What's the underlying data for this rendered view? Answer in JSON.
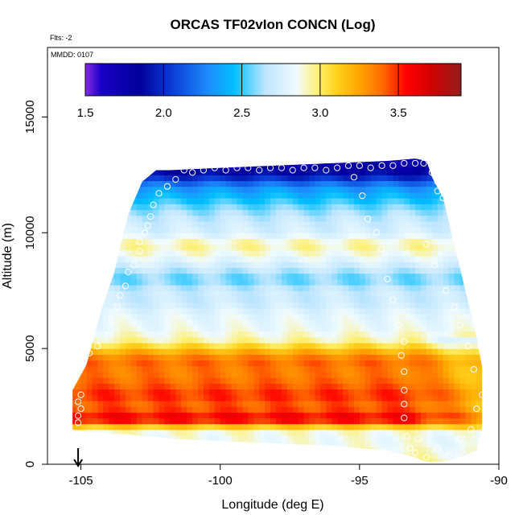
{
  "chart_data": {
    "type": "heatmap",
    "title": "ORCAS TF02vIon CONCN (Log)",
    "flts_label": "Flts: -2",
    "mmdd_label": "MMDD: 0107",
    "xlabel": "Longitude (deg E)",
    "ylabel": "Altitude (m)",
    "xlim": [
      -106.2,
      -90
    ],
    "ylim": [
      0,
      18000
    ],
    "xticks": [
      -105,
      -100,
      -95,
      -90
    ],
    "yticks": [
      0,
      5000,
      10000,
      15000
    ],
    "colorbar": {
      "range": [
        1.5,
        3.9
      ],
      "ticks": [
        1.5,
        2.0,
        2.5,
        3.0,
        3.5
      ],
      "stops": [
        {
          "v": 1.5,
          "c": "#8a2be2"
        },
        {
          "v": 1.6,
          "c": "#1a00c8"
        },
        {
          "v": 1.85,
          "c": "#00009a"
        },
        {
          "v": 2.05,
          "c": "#0a3cd6"
        },
        {
          "v": 2.3,
          "c": "#1e90ff"
        },
        {
          "v": 2.45,
          "c": "#00bfff"
        },
        {
          "v": 2.65,
          "c": "#bfe6ff"
        },
        {
          "v": 2.85,
          "c": "#f0fbff"
        },
        {
          "v": 3.0,
          "c": "#ffee66"
        },
        {
          "v": 3.1,
          "c": "#ffd21e"
        },
        {
          "v": 3.25,
          "c": "#ffa500"
        },
        {
          "v": 3.4,
          "c": "#ff6a00"
        },
        {
          "v": 3.55,
          "c": "#ff0000"
        },
        {
          "v": 3.7,
          "c": "#d40000"
        },
        {
          "v": 3.9,
          "c": "#961e1e"
        }
      ]
    },
    "envelope": [
      [
        -105.3,
        1500,
        3200
      ],
      [
        -104.8,
        1400,
        4300
      ],
      [
        -104.3,
        1400,
        6500
      ],
      [
        -103.8,
        1300,
        8300
      ],
      [
        -103.3,
        1300,
        10800
      ],
      [
        -102.8,
        1200,
        12200
      ],
      [
        -102.3,
        1200,
        12700
      ],
      [
        -101.8,
        1100,
        12700
      ],
      [
        -100.0,
        1000,
        12800
      ],
      [
        -98.0,
        900,
        12900
      ],
      [
        -96.0,
        800,
        13000
      ],
      [
        -94.0,
        600,
        13100
      ],
      [
        -93.0,
        300,
        13200
      ],
      [
        -92.6,
        100,
        13100
      ],
      [
        -92.4,
        100,
        12400
      ],
      [
        -92.0,
        100,
        11500
      ],
      [
        -91.6,
        200,
        9500
      ],
      [
        -91.2,
        400,
        7500
      ],
      [
        -90.8,
        600,
        5500
      ],
      [
        -90.6,
        1600,
        4200
      ]
    ],
    "profile": [
      [
        0,
        2.95
      ],
      [
        500,
        2.9
      ],
      [
        1000,
        2.85
      ],
      [
        1500,
        2.9
      ],
      [
        1800,
        3.45
      ],
      [
        2000,
        3.6
      ],
      [
        2500,
        3.4
      ],
      [
        3000,
        3.5
      ],
      [
        3500,
        3.4
      ],
      [
        4000,
        3.35
      ],
      [
        4500,
        3.4
      ],
      [
        5000,
        3.15
      ],
      [
        5300,
        2.95
      ],
      [
        5800,
        2.85
      ],
      [
        6500,
        2.8
      ],
      [
        7000,
        2.7
      ],
      [
        7500,
        2.7
      ],
      [
        8000,
        2.55
      ],
      [
        8500,
        2.7
      ],
      [
        9000,
        2.85
      ],
      [
        9500,
        2.95
      ],
      [
        10000,
        2.75
      ],
      [
        10500,
        2.7
      ],
      [
        11000,
        2.6
      ],
      [
        11500,
        2.45
      ],
      [
        12000,
        2.3
      ],
      [
        12500,
        1.9
      ],
      [
        13000,
        1.75
      ]
    ],
    "track_points": [
      [
        -105.1,
        1800
      ],
      [
        -105.1,
        2100
      ],
      [
        -105.0,
        2400
      ],
      [
        -105.1,
        2700
      ],
      [
        -105.0,
        3000
      ],
      [
        -104.7,
        4800
      ],
      [
        -104.4,
        5100
      ],
      [
        -104.0,
        5600
      ],
      [
        -103.9,
        6200
      ],
      [
        -103.7,
        6800
      ],
      [
        -103.6,
        7300
      ],
      [
        -103.4,
        7700
      ],
      [
        -103.3,
        8300
      ],
      [
        -103.1,
        8600
      ],
      [
        -102.9,
        9200
      ],
      [
        -102.9,
        9600
      ],
      [
        -102.7,
        10000
      ],
      [
        -102.6,
        10300
      ],
      [
        -102.5,
        10700
      ],
      [
        -102.4,
        11200
      ],
      [
        -102.2,
        11700
      ],
      [
        -101.9,
        12000
      ],
      [
        -101.6,
        12300
      ],
      [
        -101.3,
        12700
      ],
      [
        -101.0,
        12600
      ],
      [
        -100.6,
        12700
      ],
      [
        -100.2,
        12800
      ],
      [
        -99.8,
        12700
      ],
      [
        -99.4,
        12800
      ],
      [
        -99.0,
        12800
      ],
      [
        -98.6,
        12700
      ],
      [
        -98.2,
        12800
      ],
      [
        -97.8,
        12800
      ],
      [
        -97.4,
        12700
      ],
      [
        -97.0,
        12800
      ],
      [
        -96.6,
        12800
      ],
      [
        -96.2,
        12700
      ],
      [
        -95.8,
        12800
      ],
      [
        -95.4,
        12900
      ],
      [
        -95.0,
        12900
      ],
      [
        -94.6,
        12800
      ],
      [
        -94.2,
        12900
      ],
      [
        -93.8,
        12900
      ],
      [
        -93.4,
        13000
      ],
      [
        -93.0,
        13000
      ],
      [
        -92.7,
        13000
      ],
      [
        -92.4,
        12600
      ],
      [
        -92.2,
        12200
      ],
      [
        -92.2,
        11800
      ],
      [
        -95.2,
        12400
      ],
      [
        -94.9,
        11600
      ],
      [
        -94.7,
        10600
      ],
      [
        -94.4,
        10000
      ],
      [
        -94.2,
        9300
      ],
      [
        -94.0,
        8000
      ],
      [
        -93.8,
        7100
      ],
      [
        -93.6,
        6000
      ],
      [
        -93.4,
        5300
      ],
      [
        -93.5,
        4700
      ],
      [
        -93.4,
        4000
      ],
      [
        -93.4,
        3200
      ],
      [
        -93.4,
        2600
      ],
      [
        -93.4,
        2000
      ],
      [
        -93.3,
        1200
      ],
      [
        -93.2,
        700
      ],
      [
        -93.0,
        500
      ],
      [
        -92.6,
        300
      ],
      [
        -92.2,
        700
      ],
      [
        -91.8,
        400
      ],
      [
        -91.4,
        1100
      ],
      [
        -91.0,
        1500
      ],
      [
        -90.8,
        2400
      ],
      [
        -90.6,
        3000
      ],
      [
        -90.9,
        4100
      ],
      [
        -91.1,
        5100
      ],
      [
        -91.4,
        6000
      ],
      [
        -91.6,
        6800
      ],
      [
        -91.9,
        7500
      ],
      [
        -92.3,
        8600
      ],
      [
        -92.6,
        9500
      ],
      [
        -92.0,
        11500
      ],
      [
        -91.5,
        200
      ],
      [
        -92.9,
        1100
      ]
    ],
    "arrow_at": -105.1,
    "grid": false
  }
}
